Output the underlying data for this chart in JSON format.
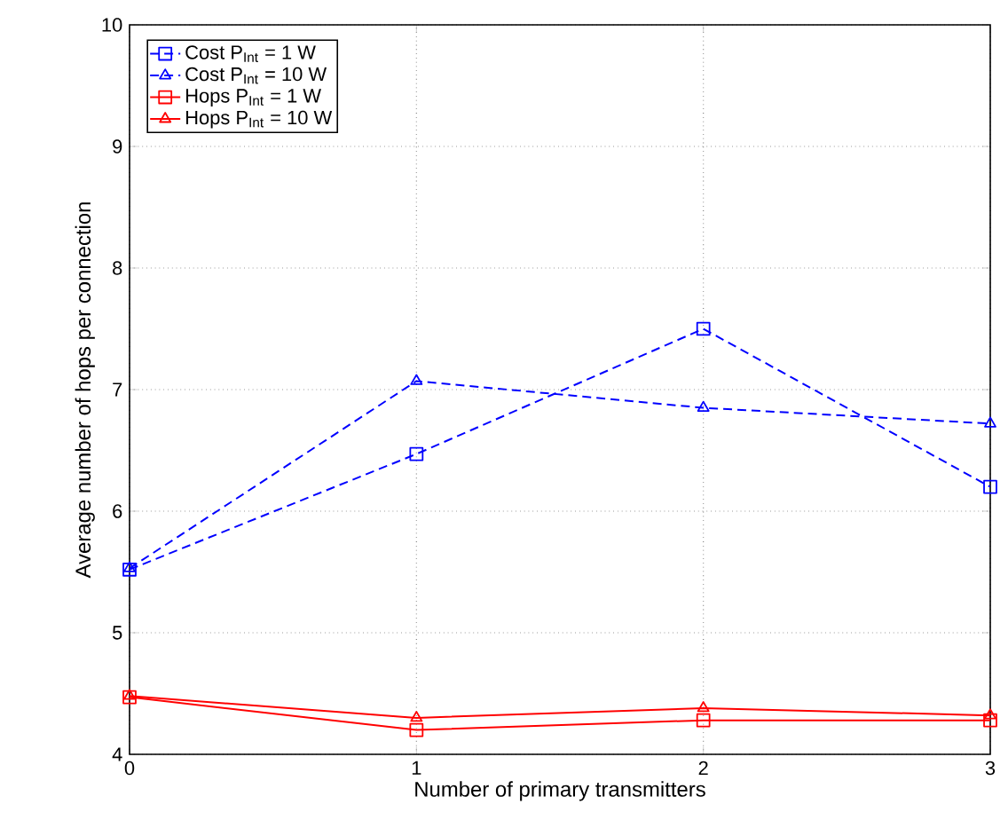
{
  "chart_data": {
    "type": "line",
    "xlabel": "Number of primary transmitters",
    "ylabel": "Average number of hops per connection",
    "x": [
      0,
      1,
      2,
      3
    ],
    "xlim": [
      0,
      3
    ],
    "xticks": [
      0,
      1,
      2,
      3
    ],
    "ylim": [
      4,
      10
    ],
    "yticks": [
      4,
      5,
      6,
      7,
      8,
      9,
      10
    ],
    "grid": true,
    "legend": "top left",
    "series": [
      {
        "name": "Cost P$_{Int}$ = 1 W",
        "color": "#0000ff",
        "marker": "square",
        "line_style": "dashed",
        "values": [
          5.52,
          6.47,
          7.5,
          6.2
        ]
      },
      {
        "name": "Cost P$_{Int}$ = 10 W",
        "color": "#0000ff",
        "marker": "triangle",
        "line_style": "dashed",
        "values": [
          5.53,
          7.07,
          6.85,
          6.72
        ]
      },
      {
        "name": "Hops P$_{Int}$ = 1 W",
        "color": "#ff0000",
        "marker": "square",
        "line_style": "solid",
        "values": [
          4.47,
          4.2,
          4.28,
          4.28
        ]
      },
      {
        "name": "Hops P$_{Int}$ = 10 W",
        "color": "#ff0000",
        "marker": "triangle",
        "line_style": "solid",
        "values": [
          4.48,
          4.3,
          4.38,
          4.32
        ]
      }
    ]
  }
}
